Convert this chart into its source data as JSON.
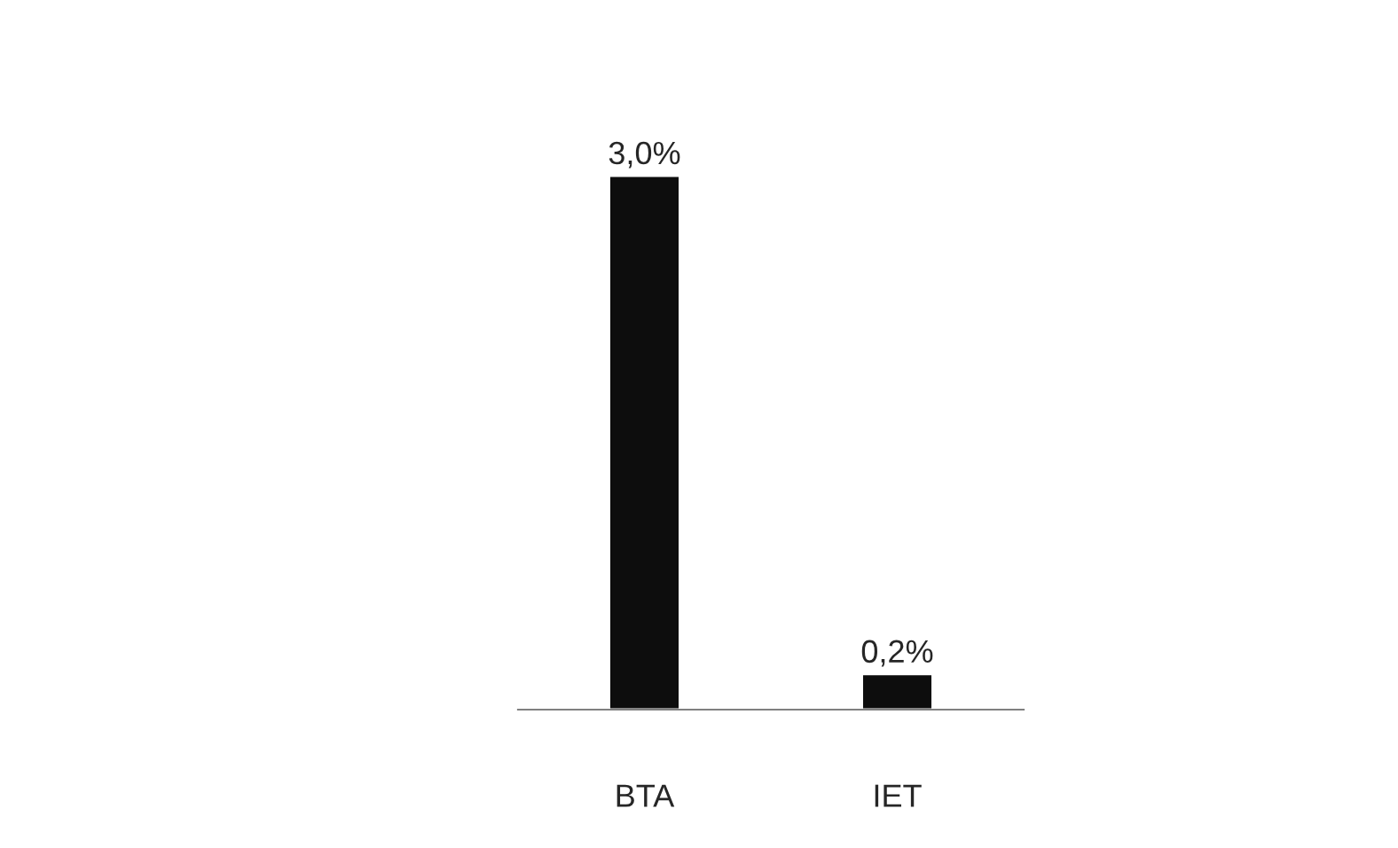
{
  "chart_data": {
    "type": "bar",
    "categories": [
      "BTA",
      "IET"
    ],
    "values": [
      3.0,
      0.2
    ],
    "value_labels": [
      "3,0%",
      "0,2%"
    ],
    "color": "#0d0d0d",
    "grid": false,
    "legend": false
  }
}
